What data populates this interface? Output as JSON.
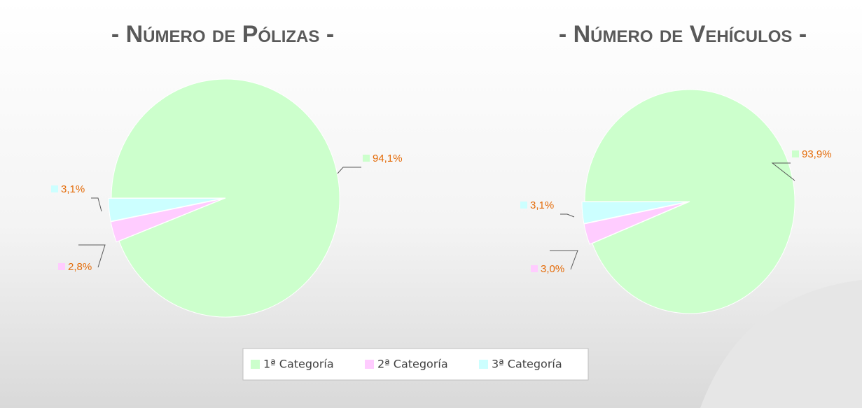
{
  "chart_data": [
    {
      "type": "pie",
      "title": "- Número de Pólizas -",
      "categories": [
        "1ª Categoría",
        "2ª Categoría",
        "3ª Categoría"
      ],
      "values": [
        94.1,
        2.8,
        3.1
      ],
      "value_labels": [
        "94,1%",
        "2,8%",
        "3,1%"
      ],
      "colors": [
        "#ccffcc",
        "#ffccff",
        "#ccffff"
      ]
    },
    {
      "type": "pie",
      "title": "- Número de Vehículos -",
      "categories": [
        "1ª Categoría",
        "2ª Categoría",
        "3ª Categoría"
      ],
      "values": [
        93.9,
        3.0,
        3.1
      ],
      "value_labels": [
        "93,9%",
        "3,0%",
        "3,1%"
      ],
      "colors": [
        "#ccffcc",
        "#ffccff",
        "#ccffff"
      ]
    }
  ]
}
